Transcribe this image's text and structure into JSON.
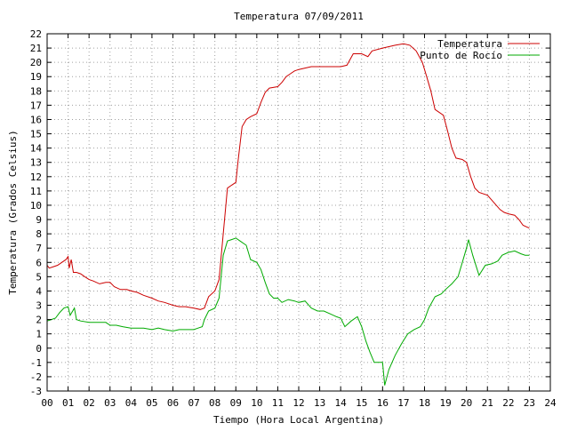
{
  "chart_data": {
    "type": "line",
    "title": "Temperatura 07/09/2011",
    "xlabel": "Tiempo (Hora Local Argentina)",
    "ylabel": "Temperatura (Grados Celsius)",
    "xlim": [
      0,
      24
    ],
    "ylim": [
      -3,
      22
    ],
    "x_ticks": [
      "00",
      "01",
      "02",
      "03",
      "04",
      "05",
      "06",
      "07",
      "08",
      "09",
      "10",
      "11",
      "12",
      "13",
      "14",
      "15",
      "16",
      "17",
      "18",
      "19",
      "20",
      "21",
      "22",
      "23",
      "24"
    ],
    "y_ticks": [
      "22",
      "21",
      "20",
      "19",
      "18",
      "17",
      "16",
      "15",
      "14",
      "13",
      "12",
      "11",
      "10",
      "9",
      "8",
      "7",
      "6",
      "5",
      "4",
      "3",
      "2",
      "1",
      "0",
      "-1",
      "-2",
      "-3"
    ],
    "grid": true,
    "legend_position": "top-right",
    "series": [
      {
        "name": "Temperatura",
        "color": "#cc0000",
        "points": [
          [
            0.0,
            5.8
          ],
          [
            0.1,
            5.6
          ],
          [
            0.3,
            5.7
          ],
          [
            0.5,
            5.8
          ],
          [
            0.7,
            6.0
          ],
          [
            0.9,
            6.2
          ],
          [
            1.0,
            6.4
          ],
          [
            1.05,
            5.6
          ],
          [
            1.15,
            6.2
          ],
          [
            1.25,
            5.3
          ],
          [
            1.4,
            5.3
          ],
          [
            1.6,
            5.2
          ],
          [
            1.8,
            5.0
          ],
          [
            2.0,
            4.8
          ],
          [
            2.2,
            4.7
          ],
          [
            2.5,
            4.5
          ],
          [
            2.8,
            4.6
          ],
          [
            3.0,
            4.6
          ],
          [
            3.2,
            4.3
          ],
          [
            3.5,
            4.1
          ],
          [
            3.8,
            4.1
          ],
          [
            4.0,
            4.0
          ],
          [
            4.3,
            3.9
          ],
          [
            4.6,
            3.7
          ],
          [
            5.0,
            3.5
          ],
          [
            5.3,
            3.3
          ],
          [
            5.6,
            3.2
          ],
          [
            6.0,
            3.0
          ],
          [
            6.3,
            2.9
          ],
          [
            6.6,
            2.9
          ],
          [
            7.0,
            2.8
          ],
          [
            7.3,
            2.7
          ],
          [
            7.5,
            2.8
          ],
          [
            7.7,
            3.6
          ],
          [
            8.0,
            4.0
          ],
          [
            8.2,
            4.8
          ],
          [
            8.4,
            8.0
          ],
          [
            8.6,
            11.2
          ],
          [
            8.8,
            11.4
          ],
          [
            9.0,
            11.6
          ],
          [
            9.1,
            13.0
          ],
          [
            9.3,
            15.5
          ],
          [
            9.5,
            16.0
          ],
          [
            9.7,
            16.2
          ],
          [
            10.0,
            16.4
          ],
          [
            10.2,
            17.2
          ],
          [
            10.4,
            17.9
          ],
          [
            10.6,
            18.2
          ],
          [
            11.0,
            18.3
          ],
          [
            11.2,
            18.6
          ],
          [
            11.4,
            19.0
          ],
          [
            11.6,
            19.2
          ],
          [
            11.8,
            19.4
          ],
          [
            12.0,
            19.5
          ],
          [
            12.3,
            19.6
          ],
          [
            12.6,
            19.7
          ],
          [
            13.0,
            19.7
          ],
          [
            13.5,
            19.7
          ],
          [
            14.0,
            19.7
          ],
          [
            14.3,
            19.8
          ],
          [
            14.6,
            20.6
          ],
          [
            15.0,
            20.6
          ],
          [
            15.3,
            20.4
          ],
          [
            15.5,
            20.8
          ],
          [
            16.0,
            21.0
          ],
          [
            16.3,
            21.1
          ],
          [
            16.6,
            21.2
          ],
          [
            17.0,
            21.3
          ],
          [
            17.3,
            21.2
          ],
          [
            17.6,
            20.8
          ],
          [
            17.9,
            20.0
          ],
          [
            18.1,
            19.0
          ],
          [
            18.3,
            18.0
          ],
          [
            18.5,
            16.7
          ],
          [
            18.7,
            16.5
          ],
          [
            18.9,
            16.3
          ],
          [
            19.1,
            15.2
          ],
          [
            19.3,
            14.0
          ],
          [
            19.5,
            13.3
          ],
          [
            19.8,
            13.2
          ],
          [
            20.0,
            13.0
          ],
          [
            20.2,
            12.0
          ],
          [
            20.4,
            11.2
          ],
          [
            20.6,
            10.9
          ],
          [
            21.0,
            10.7
          ],
          [
            21.3,
            10.2
          ],
          [
            21.6,
            9.7
          ],
          [
            21.8,
            9.5
          ],
          [
            22.0,
            9.4
          ],
          [
            22.3,
            9.3
          ],
          [
            22.5,
            9.0
          ],
          [
            22.7,
            8.6
          ],
          [
            23.0,
            8.4
          ]
        ]
      },
      {
        "name": "Punto de Rocío",
        "color": "#00aa00",
        "points": [
          [
            0.0,
            1.9
          ],
          [
            0.2,
            2.0
          ],
          [
            0.4,
            2.1
          ],
          [
            0.6,
            2.5
          ],
          [
            0.8,
            2.8
          ],
          [
            1.0,
            2.9
          ],
          [
            1.1,
            2.3
          ],
          [
            1.3,
            2.8
          ],
          [
            1.4,
            2.0
          ],
          [
            1.6,
            1.9
          ],
          [
            2.0,
            1.8
          ],
          [
            2.4,
            1.8
          ],
          [
            2.8,
            1.8
          ],
          [
            3.0,
            1.6
          ],
          [
            3.3,
            1.6
          ],
          [
            3.6,
            1.5
          ],
          [
            4.0,
            1.4
          ],
          [
            4.3,
            1.4
          ],
          [
            4.6,
            1.4
          ],
          [
            5.0,
            1.3
          ],
          [
            5.3,
            1.4
          ],
          [
            5.6,
            1.3
          ],
          [
            6.0,
            1.2
          ],
          [
            6.3,
            1.3
          ],
          [
            6.6,
            1.3
          ],
          [
            7.0,
            1.3
          ],
          [
            7.2,
            1.4
          ],
          [
            7.4,
            1.5
          ],
          [
            7.5,
            2.0
          ],
          [
            7.7,
            2.6
          ],
          [
            8.0,
            2.8
          ],
          [
            8.2,
            3.5
          ],
          [
            8.4,
            6.5
          ],
          [
            8.6,
            7.5
          ],
          [
            8.8,
            7.6
          ],
          [
            9.0,
            7.7
          ],
          [
            9.2,
            7.5
          ],
          [
            9.5,
            7.2
          ],
          [
            9.7,
            6.2
          ],
          [
            10.0,
            6.0
          ],
          [
            10.2,
            5.5
          ],
          [
            10.4,
            4.6
          ],
          [
            10.6,
            3.8
          ],
          [
            10.8,
            3.5
          ],
          [
            11.0,
            3.5
          ],
          [
            11.2,
            3.2
          ],
          [
            11.5,
            3.4
          ],
          [
            11.8,
            3.3
          ],
          [
            12.0,
            3.2
          ],
          [
            12.3,
            3.3
          ],
          [
            12.6,
            2.8
          ],
          [
            12.9,
            2.6
          ],
          [
            13.2,
            2.6
          ],
          [
            13.5,
            2.4
          ],
          [
            13.8,
            2.2
          ],
          [
            14.0,
            2.1
          ],
          [
            14.2,
            1.5
          ],
          [
            14.5,
            1.9
          ],
          [
            14.8,
            2.2
          ],
          [
            15.0,
            1.5
          ],
          [
            15.2,
            0.5
          ],
          [
            15.4,
            -0.3
          ],
          [
            15.6,
            -1.0
          ],
          [
            16.0,
            -1.0
          ],
          [
            16.1,
            -2.6
          ],
          [
            16.3,
            -1.5
          ],
          [
            16.6,
            -0.5
          ],
          [
            16.9,
            0.3
          ],
          [
            17.2,
            1.0
          ],
          [
            17.5,
            1.3
          ],
          [
            17.8,
            1.5
          ],
          [
            18.0,
            2.0
          ],
          [
            18.2,
            2.8
          ],
          [
            18.5,
            3.6
          ],
          [
            18.8,
            3.8
          ],
          [
            19.0,
            4.1
          ],
          [
            19.3,
            4.5
          ],
          [
            19.6,
            5.0
          ],
          [
            19.8,
            6.0
          ],
          [
            20.0,
            7.0
          ],
          [
            20.1,
            7.6
          ],
          [
            20.3,
            6.5
          ],
          [
            20.6,
            5.1
          ],
          [
            20.9,
            5.8
          ],
          [
            21.2,
            5.9
          ],
          [
            21.5,
            6.1
          ],
          [
            21.7,
            6.5
          ],
          [
            22.0,
            6.7
          ],
          [
            22.3,
            6.8
          ],
          [
            22.6,
            6.6
          ],
          [
            22.8,
            6.5
          ],
          [
            23.0,
            6.5
          ]
        ]
      }
    ]
  }
}
